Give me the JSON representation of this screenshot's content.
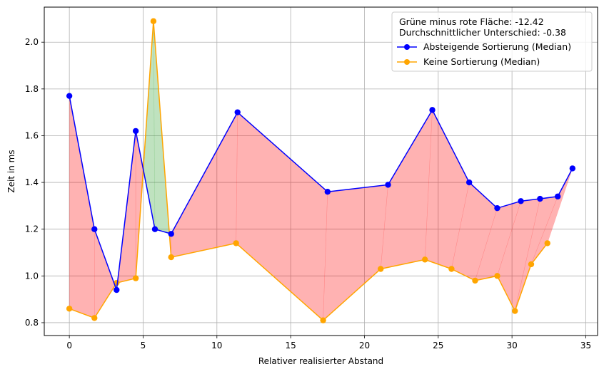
{
  "chart_data": {
    "type": "line",
    "xlabel": "Relativer realisierter Abstand",
    "ylabel": "Zeit in ms",
    "xlim": [
      -1.7,
      35.8
    ],
    "ylim": [
      0.745,
      2.15
    ],
    "xticks": [
      0,
      5,
      10,
      15,
      20,
      25,
      30,
      35
    ],
    "yticks": [
      0.8,
      1.0,
      1.2,
      1.4,
      1.6,
      1.8,
      2.0
    ],
    "grid": true,
    "legend_position": "top-right",
    "annotations": [
      "Grüne minus rote Fläche: -12.42",
      "Durchschnittlicher Unterschied: -0.38"
    ],
    "series": [
      {
        "name": "Absteigende Sortierung (Median)",
        "color": "#0000ff",
        "marker": "circle",
        "x": [
          0,
          1.7,
          3.2,
          4.5,
          5.8,
          6.9,
          11.4,
          17.5,
          21.6,
          24.6,
          27.1,
          29.0,
          30.6,
          31.9,
          33.1,
          34.1
        ],
        "y": [
          1.77,
          1.2,
          0.94,
          1.62,
          1.2,
          1.18,
          1.7,
          1.36,
          1.39,
          1.71,
          1.4,
          1.29,
          1.32,
          1.33,
          1.34,
          1.46
        ]
      },
      {
        "name": "Keine Sortierung (Median)",
        "color": "#ffa500",
        "marker": "circle",
        "x": [
          0,
          1.7,
          3.2,
          4.5,
          5.7,
          6.9,
          11.3,
          17.2,
          21.1,
          24.1,
          25.9,
          27.5,
          29.0,
          30.2,
          31.3,
          32.4
        ],
        "y": [
          0.86,
          0.82,
          0.97,
          0.99,
          2.09,
          1.08,
          1.14,
          0.81,
          1.03,
          1.07,
          1.03,
          0.98,
          1.0,
          0.85,
          1.05,
          1.14
        ]
      }
    ],
    "fill": {
      "green_color": "#2ca02c",
      "red_color": "#ff0000",
      "opacity": 0.3
    }
  }
}
